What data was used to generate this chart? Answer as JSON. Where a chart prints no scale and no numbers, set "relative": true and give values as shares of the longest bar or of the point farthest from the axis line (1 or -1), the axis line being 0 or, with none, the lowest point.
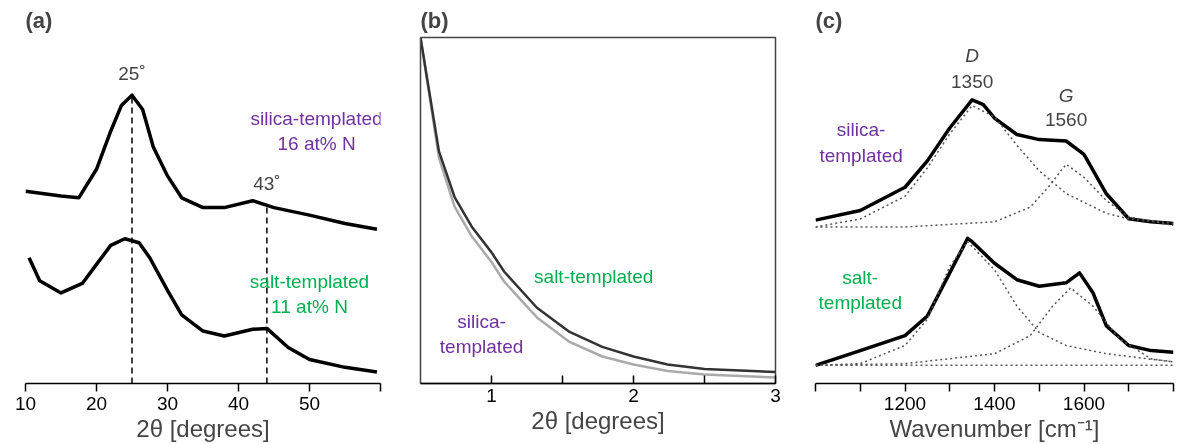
{
  "chart_data": [
    {
      "type": "line",
      "title": "(a)",
      "relative": true,
      "xlabel": "2θ [degrees]",
      "xlim": [
        10,
        60
      ],
      "xticks": [
        10,
        20,
        30,
        40,
        50,
        {
          "value": 60,
          "label": null
        }
      ],
      "legend": false,
      "grid": false,
      "series": [
        {
          "name": "silica-templated\n16 at% N",
          "color": "#000000",
          "x": [
            10,
            15,
            17.5,
            20,
            22,
            23.5,
            25,
            26.5,
            28,
            30,
            32,
            35,
            38,
            42,
            45,
            50,
            55,
            59.5
          ],
          "values": [
            0.667,
            0.65,
            0.644,
            0.743,
            0.875,
            0.964,
            1.0,
            0.95,
            0.82,
            0.72,
            0.644,
            0.61,
            0.61,
            0.634,
            0.61,
            0.584,
            0.555,
            0.535
          ]
        },
        {
          "name": "salt-templated\n11 at% N",
          "color": "#000000",
          "x": [
            10.5,
            12,
            15,
            18,
            20,
            22,
            24,
            26,
            27.5,
            30,
            32,
            35,
            38,
            42,
            44,
            47,
            50,
            55,
            59.5
          ],
          "values": [
            0.436,
            0.356,
            0.314,
            0.347,
            0.413,
            0.479,
            0.502,
            0.488,
            0.436,
            0.323,
            0.238,
            0.182,
            0.165,
            0.188,
            0.191,
            0.125,
            0.083,
            0.056,
            0.04
          ]
        }
      ],
      "ref_lines": [
        {
          "axis": "x",
          "value": 25,
          "label": "25˚",
          "line_style": "dashed"
        },
        {
          "axis": "x",
          "value": 44,
          "label": "43˚",
          "line_style": "dashed"
        }
      ]
    },
    {
      "type": "line",
      "title": "(b)",
      "relative": true,
      "xlabel": "2θ [degrees]",
      "xlim": [
        0.5,
        3
      ],
      "xticks": [
        1,
        {
          "value": 1.5,
          "label": null
        },
        2,
        {
          "value": 2.5,
          "label": null
        },
        3
      ],
      "legend": false,
      "grid": false,
      "series": [
        {
          "name": "silica-\ntemplated",
          "color": "#aaaaaa",
          "x": [
            0.5,
            0.63,
            0.74,
            0.86,
            1.0,
            1.09,
            1.32,
            1.55,
            1.78,
            2.0,
            2.24,
            2.5,
            3.0
          ],
          "values": [
            1.0,
            0.652,
            0.511,
            0.426,
            0.351,
            0.294,
            0.191,
            0.12,
            0.078,
            0.055,
            0.036,
            0.026,
            0.017
          ]
        },
        {
          "name": "salt-templated",
          "color": "#333333",
          "x": [
            0.5,
            0.63,
            0.74,
            0.86,
            1.0,
            1.09,
            1.32,
            1.55,
            1.78,
            2.0,
            2.24,
            2.5,
            3.0
          ],
          "values": [
            1.0,
            0.671,
            0.539,
            0.454,
            0.379,
            0.323,
            0.219,
            0.149,
            0.106,
            0.078,
            0.055,
            0.042,
            0.033
          ]
        }
      ]
    },
    {
      "type": "line",
      "title": "(c)",
      "relative": true,
      "xlabel": "Wavenumber [cm⁻¹]",
      "xlim": [
        1000,
        1800
      ],
      "xticks": [
        {
          "value": 1000,
          "label": null
        },
        {
          "value": 1100,
          "label": null
        },
        1200,
        {
          "value": 1300,
          "label": null
        },
        1400,
        {
          "value": 1500,
          "label": null
        },
        1600,
        {
          "value": 1700,
          "label": null
        },
        {
          "value": 1800,
          "label": null
        }
      ],
      "legend": false,
      "grid": false,
      "annotations": [
        "D",
        "1350",
        "G",
        "1560"
      ],
      "series": [
        {
          "name": "silica-\ntemplated",
          "color": "#000000",
          "x": [
            1000,
            1100,
            1200,
            1250,
            1300,
            1350,
            1375,
            1400,
            1450,
            1500,
            1560,
            1600,
            1650,
            1700,
            1750,
            1800
          ],
          "values": [
            0.576,
            0.61,
            0.692,
            0.785,
            0.901,
            1.0,
            0.983,
            0.936,
            0.878,
            0.86,
            0.855,
            0.808,
            0.669,
            0.581,
            0.57,
            0.564
          ]
        },
        {
          "name": "salt-\ntemplated",
          "color": "#000000",
          "x": [
            1000,
            1100,
            1200,
            1250,
            1300,
            1340,
            1350,
            1400,
            1450,
            1500,
            1560,
            1590,
            1620,
            1650,
            1700,
            1750,
            1800
          ],
          "values": [
            0.064,
            0.116,
            0.169,
            0.238,
            0.39,
            0.512,
            0.5,
            0.424,
            0.366,
            0.343,
            0.355,
            0.39,
            0.32,
            0.203,
            0.134,
            0.116,
            0.11
          ]
        },
        {
          "color": "#555555",
          "line_style": "dotted",
          "x": [
            1000,
            1100,
            1200,
            1250,
            1300,
            1350,
            1400,
            1450,
            1500,
            1560,
            1650,
            1700,
            1800
          ],
          "values": [
            0.552,
            0.58,
            0.66,
            0.76,
            0.88,
            0.98,
            0.94,
            0.84,
            0.75,
            0.67,
            0.6,
            0.58,
            0.565
          ]
        },
        {
          "color": "#555555",
          "line_style": "dotted",
          "x": [
            1000,
            1200,
            1400,
            1480,
            1520,
            1560,
            1600,
            1650,
            1700,
            1800
          ],
          "values": [
            0.552,
            0.552,
            0.57,
            0.622,
            0.692,
            0.773,
            0.727,
            0.645,
            0.587,
            0.558
          ]
        },
        {
          "color": "#555555",
          "line_style": "dotted",
          "x": [
            1000,
            1100,
            1200,
            1250,
            1300,
            1340,
            1400,
            1450,
            1500,
            1560,
            1650,
            1800
          ],
          "values": [
            0.064,
            0.07,
            0.134,
            0.227,
            0.413,
            0.5,
            0.401,
            0.273,
            0.18,
            0.134,
            0.105,
            0.076
          ]
        },
        {
          "color": "#555555",
          "line_style": "dotted",
          "x": [
            1000,
            1200,
            1400,
            1480,
            1530,
            1570,
            1620,
            1680,
            1750,
            1800
          ],
          "values": [
            0.064,
            0.07,
            0.105,
            0.169,
            0.273,
            0.337,
            0.273,
            0.157,
            0.087,
            0.076
          ]
        },
        {
          "color": "#555555",
          "line_style": "dotted",
          "x": [
            1000,
            1800
          ],
          "values": [
            0.064,
            0.064
          ]
        }
      ]
    }
  ]
}
